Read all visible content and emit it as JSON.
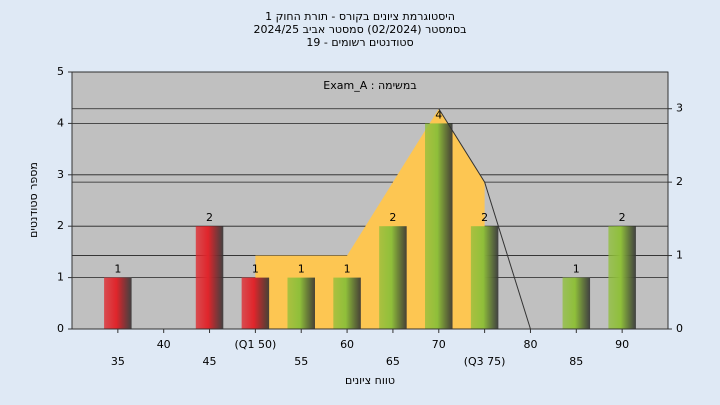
{
  "chart_data": {
    "type": "bar",
    "title": [
      "היסטוגרמת ציונים בקורס - תורת החוק 1",
      "בסמסטר  (02/2024)  סמסטר אביב 2024/25",
      "סטודנטים רשומים - 19"
    ],
    "annotation": "Exam_A : במשימה",
    "x_label": "טווח ציונים",
    "y_label": "מספר סטודנטים",
    "categories": [
      "35",
      "40",
      "45",
      "(Q1 50)",
      "55",
      "60",
      "65",
      "70",
      "(Q3 75)",
      "80",
      "85",
      "90"
    ],
    "values": [
      1,
      0,
      2,
      1,
      1,
      1,
      2,
      4,
      2,
      0,
      1,
      2
    ],
    "colors": [
      "#e0252b",
      "#e0252b",
      "#e0252b",
      "#e0252b",
      "#8fbf3a",
      "#8fbf3a",
      "#8fbf3a",
      "#8fbf3a",
      "#8fbf3a",
      "#8fbf3a",
      "#8fbf3a",
      "#8fbf3a"
    ],
    "area": {
      "color": "#fdc652",
      "axis": "y2",
      "values": [
        null,
        null,
        null,
        1,
        1,
        1,
        2,
        3,
        2,
        null,
        null,
        null
      ]
    },
    "line": {
      "color": "#333333",
      "axis": "y2",
      "values": [
        null,
        null,
        null,
        null,
        null,
        null,
        null,
        3,
        2,
        0,
        null,
        null
      ]
    },
    "ylim": [
      0,
      5
    ],
    "yticks": [
      0,
      1,
      2,
      3,
      4,
      5
    ],
    "y2lim": [
      0,
      3.5
    ],
    "y2ticks": [
      0,
      1,
      2,
      3
    ],
    "grid": true
  }
}
